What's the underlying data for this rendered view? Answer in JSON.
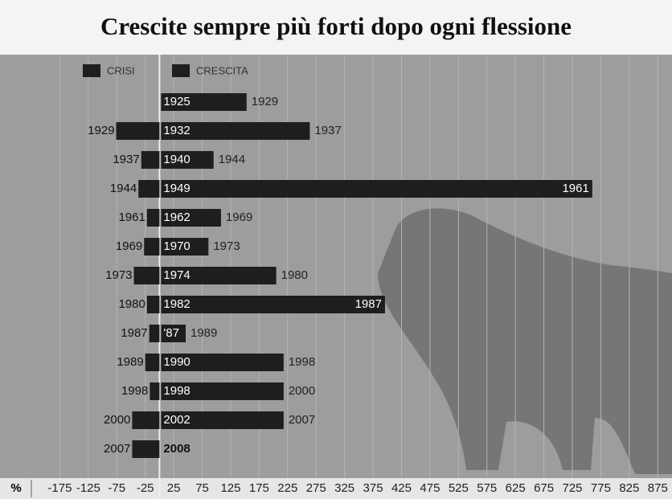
{
  "chart_data": {
    "type": "bar",
    "orientation": "horizontal",
    "title": "Crescite sempre più forti dopo ogni flessione",
    "x_label": "%",
    "series": [
      {
        "name": "CRISI",
        "color": "#1e1e1e",
        "values": [
          null,
          -76,
          -32,
          -37,
          -22,
          -27,
          -45,
          -22,
          -18,
          -25,
          -17,
          -48,
          -48
        ],
        "start_labels": [
          null,
          "1929",
          "1937",
          "1944",
          "1961",
          "1969",
          "1973",
          "1980",
          "1987",
          "1989",
          "1998",
          "2000",
          "2007"
        ]
      },
      {
        "name": "CRESCITA",
        "color": "#1e1e1e",
        "values": [
          153,
          264,
          95,
          760,
          108,
          86,
          205,
          396,
          46,
          218,
          218,
          218,
          null
        ],
        "start_labels": [
          "1925",
          "1932",
          "1940",
          "1949",
          "1962",
          "1970",
          "1974",
          "1982",
          "'87",
          "1990",
          "1998",
          "2002",
          "2008"
        ],
        "end_labels": [
          "1929",
          "1937",
          "1944",
          "1961",
          "1969",
          "1973",
          "1980",
          "1987",
          "1989",
          "1998",
          "2000",
          "2007",
          null
        ]
      }
    ],
    "xlim": [
      -225,
      900
    ],
    "xticks": [
      -175,
      -125,
      -75,
      -25,
      25,
      75,
      125,
      175,
      225,
      275,
      325,
      375,
      425,
      475,
      525,
      575,
      625,
      675,
      725,
      775,
      825,
      875
    ],
    "grid": true
  }
}
